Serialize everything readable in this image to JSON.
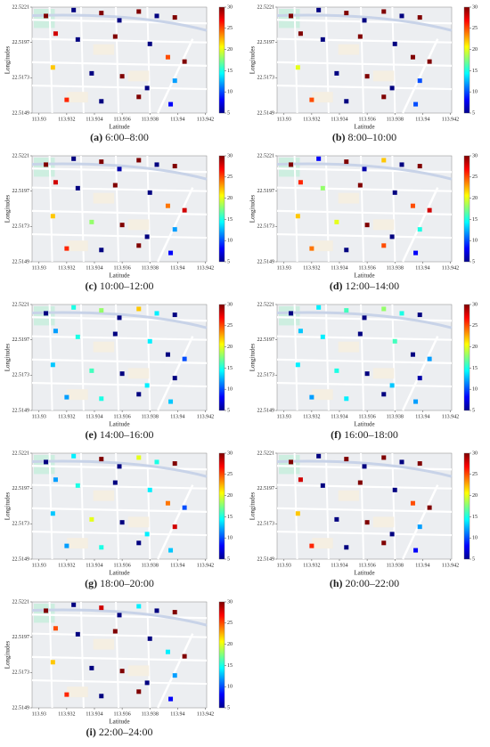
{
  "chart_data": [
    {
      "type": "scatter",
      "caption_label": "(a)",
      "caption": "6:00–8:00",
      "x_label": "Latitude",
      "y_label": "Longitudes",
      "colormap": "jet",
      "clim": [
        5,
        30
      ],
      "cticks": [
        5,
        10,
        15,
        20,
        25,
        30
      ],
      "xlim": [
        113.9295,
        113.9421
      ],
      "ylim": [
        22.5149,
        22.5221
      ],
      "xticks": [
        113.93,
        113.932,
        113.934,
        113.936,
        113.938,
        113.94,
        113.942
      ],
      "yticks": [
        22.5149,
        22.5173,
        22.5197,
        22.5221
      ],
      "x": [
        113.9305,
        113.9325,
        113.9345,
        113.9358,
        113.9372,
        113.9385,
        113.9398,
        113.9312,
        113.9328,
        113.9355,
        113.938,
        113.9393,
        113.9405,
        113.931,
        113.9338,
        113.936,
        113.9378,
        113.9398,
        113.932,
        113.9345,
        113.9372,
        113.9395
      ],
      "y": [
        22.5215,
        22.5219,
        22.5217,
        22.5212,
        22.5218,
        22.5215,
        22.5214,
        22.5203,
        22.5199,
        22.5201,
        22.5196,
        22.5187,
        22.5184,
        22.518,
        22.5176,
        22.5174,
        22.5166,
        22.5171,
        22.5158,
        22.5157,
        22.516,
        22.5155
      ],
      "values": [
        30,
        5,
        30,
        5,
        30,
        5,
        30,
        28,
        5,
        30,
        5,
        25,
        30,
        22,
        5,
        30,
        5,
        12,
        26,
        5,
        30,
        8
      ]
    },
    {
      "type": "scatter",
      "caption_label": "(b)",
      "caption": "8:00–10:00",
      "x_label": "Latitude",
      "y_label": "Longitudes",
      "colormap": "jet",
      "clim": [
        5,
        30
      ],
      "cticks": [
        5,
        10,
        15,
        20,
        25,
        30
      ],
      "xlim": [
        113.9295,
        113.9421
      ],
      "ylim": [
        22.5149,
        22.5221
      ],
      "xticks": [
        113.93,
        113.932,
        113.934,
        113.936,
        113.938,
        113.94,
        113.942
      ],
      "yticks": [
        22.5149,
        22.5173,
        22.5197,
        22.5221
      ],
      "x": [
        113.9305,
        113.9325,
        113.9345,
        113.9358,
        113.9372,
        113.9385,
        113.9398,
        113.9312,
        113.9328,
        113.9355,
        113.938,
        113.9393,
        113.9405,
        113.931,
        113.9338,
        113.936,
        113.9378,
        113.9398,
        113.932,
        113.9345,
        113.9372,
        113.9395
      ],
      "y": [
        22.5215,
        22.5219,
        22.5217,
        22.5212,
        22.5218,
        22.5215,
        22.5214,
        22.5203,
        22.5199,
        22.5201,
        22.5196,
        22.5187,
        22.5184,
        22.518,
        22.5176,
        22.5174,
        22.5166,
        22.5171,
        22.5158,
        22.5157,
        22.516,
        22.5155
      ],
      "values": [
        30,
        5,
        30,
        5,
        30,
        5,
        30,
        30,
        5,
        30,
        5,
        30,
        30,
        20,
        5,
        30,
        5,
        10,
        25,
        5,
        30,
        10
      ]
    },
    {
      "type": "scatter",
      "caption_label": "(c)",
      "caption": "10:00–12:00",
      "x_label": "Latitude",
      "y_label": "Longitudes",
      "colormap": "jet",
      "clim": [
        5,
        30
      ],
      "cticks": [
        5,
        10,
        15,
        20,
        25,
        30
      ],
      "xlim": [
        113.9295,
        113.9421
      ],
      "ylim": [
        22.5149,
        22.5221
      ],
      "xticks": [
        113.93,
        113.932,
        113.934,
        113.936,
        113.938,
        113.94,
        113.942
      ],
      "yticks": [
        22.5149,
        22.5173,
        22.5197,
        22.5221
      ],
      "x": [
        113.9305,
        113.9325,
        113.9345,
        113.9358,
        113.9372,
        113.9385,
        113.9398,
        113.9312,
        113.9328,
        113.9355,
        113.938,
        113.9393,
        113.9405,
        113.931,
        113.9338,
        113.936,
        113.9378,
        113.9398,
        113.932,
        113.9345,
        113.9372,
        113.9395
      ],
      "y": [
        22.5215,
        22.5219,
        22.5217,
        22.5212,
        22.5218,
        22.5215,
        22.5214,
        22.5203,
        22.5199,
        22.5201,
        22.5196,
        22.5187,
        22.5184,
        22.518,
        22.5176,
        22.5174,
        22.5166,
        22.5171,
        22.5158,
        22.5157,
        22.516,
        22.5155
      ],
      "values": [
        30,
        5,
        30,
        6,
        30,
        5,
        30,
        28,
        5,
        30,
        5,
        24,
        28,
        22,
        18,
        30,
        5,
        12,
        26,
        5,
        30,
        8
      ]
    },
    {
      "type": "scatter",
      "caption_label": "(d)",
      "caption": "12:00–14:00",
      "x_label": "Latitude",
      "y_label": "Longitudes",
      "colormap": "jet",
      "clim": [
        5,
        30
      ],
      "cticks": [
        5,
        10,
        15,
        20,
        25,
        30
      ],
      "xlim": [
        113.9295,
        113.9421
      ],
      "ylim": [
        22.5149,
        22.5221
      ],
      "xticks": [
        113.93,
        113.932,
        113.934,
        113.936,
        113.938,
        113.94,
        113.942
      ],
      "yticks": [
        22.5149,
        22.5173,
        22.5197,
        22.5221
      ],
      "x": [
        113.9305,
        113.9325,
        113.9345,
        113.9358,
        113.9372,
        113.9385,
        113.9398,
        113.9312,
        113.9328,
        113.9355,
        113.938,
        113.9393,
        113.9405,
        113.931,
        113.9338,
        113.936,
        113.9378,
        113.9398,
        113.932,
        113.9345,
        113.9372,
        113.9395
      ],
      "y": [
        22.5215,
        22.5219,
        22.5217,
        22.5212,
        22.5218,
        22.5215,
        22.5214,
        22.5203,
        22.5199,
        22.5201,
        22.5196,
        22.5187,
        22.5184,
        22.518,
        22.5176,
        22.5174,
        22.5166,
        22.5171,
        22.5158,
        22.5157,
        22.516,
        22.5155
      ],
      "values": [
        30,
        8,
        30,
        6,
        22,
        5,
        30,
        26,
        18,
        30,
        5,
        25,
        28,
        22,
        20,
        30,
        5,
        15,
        24,
        5,
        25,
        8
      ]
    },
    {
      "type": "scatter",
      "caption_label": "(e)",
      "caption": "14:00–16:00",
      "x_label": "Latitude",
      "y_label": "Longitudes",
      "colormap": "jet",
      "clim": [
        5,
        30
      ],
      "cticks": [
        5,
        10,
        15,
        20,
        25,
        30
      ],
      "xlim": [
        113.9295,
        113.9421
      ],
      "ylim": [
        22.5149,
        22.5221
      ],
      "xticks": [
        113.93,
        113.932,
        113.934,
        113.936,
        113.938,
        113.94,
        113.942
      ],
      "yticks": [
        22.5149,
        22.5173,
        22.5197,
        22.5221
      ],
      "x": [
        113.9305,
        113.9325,
        113.9345,
        113.9358,
        113.9372,
        113.9385,
        113.9398,
        113.9312,
        113.9328,
        113.9355,
        113.938,
        113.9393,
        113.9405,
        113.931,
        113.9338,
        113.936,
        113.9378,
        113.9398,
        113.932,
        113.9345,
        113.9372,
        113.9395
      ],
      "y": [
        22.5215,
        22.5219,
        22.5217,
        22.5212,
        22.5218,
        22.5215,
        22.5214,
        22.5203,
        22.5199,
        22.5201,
        22.5196,
        22.5187,
        22.5184,
        22.518,
        22.5176,
        22.5174,
        22.5166,
        22.5171,
        22.5158,
        22.5157,
        22.516,
        22.5155
      ],
      "values": [
        5,
        15,
        18,
        5,
        22,
        14,
        5,
        12,
        15,
        5,
        14,
        5,
        10,
        13,
        16,
        5,
        14,
        5,
        12,
        15,
        5,
        13
      ]
    },
    {
      "type": "scatter",
      "caption_label": "(f)",
      "caption": "16:00–18:00",
      "x_label": "Latitude",
      "y_label": "Longitudes",
      "colormap": "jet",
      "clim": [
        5,
        30
      ],
      "cticks": [
        5,
        10,
        15,
        20,
        25,
        30
      ],
      "xlim": [
        113.9295,
        113.9421
      ],
      "ylim": [
        22.5149,
        22.5221
      ],
      "xticks": [
        113.93,
        113.932,
        113.934,
        113.936,
        113.938,
        113.94,
        113.942
      ],
      "yticks": [
        22.5149,
        22.5173,
        22.5197,
        22.5221
      ],
      "x": [
        113.9305,
        113.9325,
        113.9345,
        113.9358,
        113.9372,
        113.9385,
        113.9398,
        113.9312,
        113.9328,
        113.9355,
        113.938,
        113.9393,
        113.9405,
        113.931,
        113.9338,
        113.936,
        113.9378,
        113.9398,
        113.932,
        113.9345,
        113.9372,
        113.9395
      ],
      "y": [
        22.5215,
        22.5219,
        22.5217,
        22.5212,
        22.5218,
        22.5215,
        22.5214,
        22.5203,
        22.5199,
        22.5201,
        22.5196,
        22.5187,
        22.5184,
        22.518,
        22.5176,
        22.5174,
        22.5166,
        22.5171,
        22.5158,
        22.5157,
        22.516,
        22.5155
      ],
      "values": [
        5,
        14,
        16,
        5,
        18,
        15,
        5,
        13,
        14,
        5,
        16,
        5,
        12,
        14,
        15,
        5,
        13,
        6,
        12,
        14,
        5,
        12
      ]
    },
    {
      "type": "scatter",
      "caption_label": "(g)",
      "caption": "18:00–20:00",
      "x_label": "Latitude",
      "y_label": "Longitudes",
      "colormap": "jet",
      "clim": [
        5,
        30
      ],
      "cticks": [
        5,
        10,
        15,
        20,
        25,
        30
      ],
      "xlim": [
        113.9295,
        113.9421
      ],
      "ylim": [
        22.5149,
        22.5221
      ],
      "xticks": [
        113.93,
        113.932,
        113.934,
        113.936,
        113.938,
        113.94,
        113.942
      ],
      "yticks": [
        22.5149,
        22.5173,
        22.5197,
        22.5221
      ],
      "x": [
        113.9305,
        113.9325,
        113.9345,
        113.9358,
        113.9372,
        113.9385,
        113.9398,
        113.9312,
        113.9328,
        113.9355,
        113.938,
        113.9393,
        113.9405,
        113.931,
        113.9338,
        113.936,
        113.9378,
        113.9398,
        113.932,
        113.9345,
        113.9372,
        113.9395
      ],
      "y": [
        22.5215,
        22.5219,
        22.5217,
        22.5212,
        22.5218,
        22.5215,
        22.5214,
        22.5203,
        22.5199,
        22.5201,
        22.5196,
        22.5187,
        22.5184,
        22.518,
        22.5176,
        22.5174,
        22.5166,
        22.5171,
        22.5158,
        22.5157,
        22.516,
        22.5155
      ],
      "values": [
        5,
        14,
        30,
        5,
        20,
        15,
        30,
        12,
        15,
        5,
        14,
        24,
        10,
        13,
        20,
        5,
        14,
        28,
        12,
        15,
        5,
        13
      ]
    },
    {
      "type": "scatter",
      "caption_label": "(h)",
      "caption": "20:00–22:00",
      "x_label": "Latitude",
      "y_label": "Longitudes",
      "colormap": "jet",
      "clim": [
        5,
        30
      ],
      "cticks": [
        5,
        10,
        15,
        20,
        25,
        30
      ],
      "xlim": [
        113.9295,
        113.9421
      ],
      "ylim": [
        22.5149,
        22.5221
      ],
      "xticks": [
        113.93,
        113.932,
        113.934,
        113.936,
        113.938,
        113.94,
        113.942
      ],
      "yticks": [
        22.5149,
        22.5173,
        22.5197,
        22.5221
      ],
      "x": [
        113.9305,
        113.9325,
        113.9345,
        113.9358,
        113.9372,
        113.9385,
        113.9398,
        113.9312,
        113.9328,
        113.9355,
        113.938,
        113.9393,
        113.9405,
        113.931,
        113.9338,
        113.936,
        113.9378,
        113.9398,
        113.932,
        113.9345,
        113.9372,
        113.9395
      ],
      "y": [
        22.5215,
        22.5219,
        22.5217,
        22.5212,
        22.5218,
        22.5215,
        22.5214,
        22.5203,
        22.5199,
        22.5201,
        22.5196,
        22.5187,
        22.5184,
        22.518,
        22.5176,
        22.5174,
        22.5166,
        22.5171,
        22.5158,
        22.5157,
        22.516,
        22.5155
      ],
      "values": [
        30,
        5,
        30,
        5,
        30,
        5,
        30,
        28,
        5,
        30,
        5,
        25,
        30,
        22,
        5,
        30,
        5,
        12,
        26,
        5,
        30,
        8
      ]
    },
    {
      "type": "scatter",
      "caption_label": "(i)",
      "caption": "22:00–24:00",
      "x_label": "Latitude",
      "y_label": "Longitudes",
      "colormap": "jet",
      "clim": [
        5,
        30
      ],
      "cticks": [
        5,
        10,
        15,
        20,
        25,
        30
      ],
      "xlim": [
        113.9295,
        113.9421
      ],
      "ylim": [
        22.5149,
        22.5221
      ],
      "xticks": [
        113.93,
        113.932,
        113.934,
        113.936,
        113.938,
        113.94,
        113.942
      ],
      "yticks": [
        22.5149,
        22.5173,
        22.5197,
        22.5221
      ],
      "x": [
        113.9305,
        113.9325,
        113.9345,
        113.9358,
        113.9372,
        113.9385,
        113.9398,
        113.9312,
        113.9328,
        113.9355,
        113.938,
        113.9393,
        113.9405,
        113.931,
        113.9338,
        113.936,
        113.9378,
        113.9398,
        113.932,
        113.9345,
        113.9372,
        113.9395
      ],
      "y": [
        22.5215,
        22.5219,
        22.5217,
        22.5212,
        22.5218,
        22.5215,
        22.5214,
        22.5203,
        22.5199,
        22.5201,
        22.5196,
        22.5187,
        22.5184,
        22.518,
        22.5176,
        22.5174,
        22.5166,
        22.5171,
        22.5158,
        22.5157,
        22.516,
        22.5155
      ],
      "values": [
        30,
        5,
        28,
        5,
        14,
        5,
        30,
        25,
        5,
        30,
        5,
        14,
        30,
        22,
        5,
        30,
        5,
        12,
        26,
        5,
        30,
        8
      ]
    }
  ]
}
